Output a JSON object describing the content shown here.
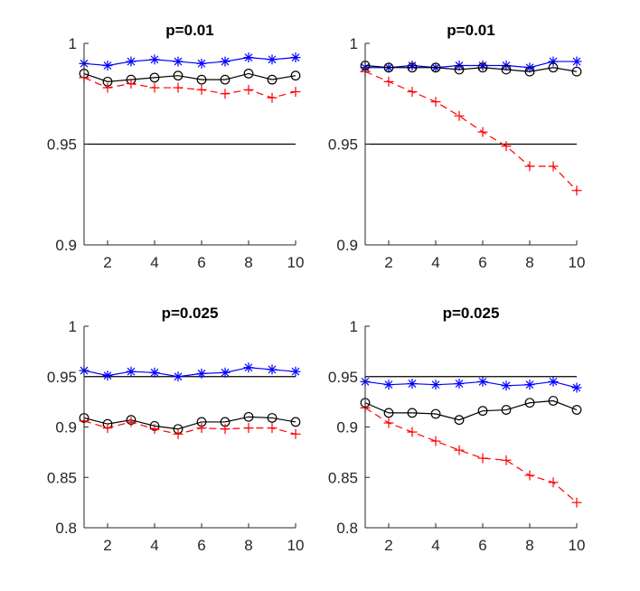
{
  "chart_data": [
    {
      "type": "line",
      "title": "p=0.01",
      "x": [
        1,
        2,
        3,
        4,
        5,
        6,
        7,
        8,
        9,
        10
      ],
      "xticks": [
        2,
        4,
        6,
        8,
        10
      ],
      "xlim": [
        1,
        10
      ],
      "ylim": [
        0.9,
        1
      ],
      "yticks": [
        0.9,
        0.95,
        1
      ],
      "ytick_labels": [
        "0.9",
        "0.95",
        "1"
      ],
      "reference_line": 0.95,
      "series": [
        {
          "name": "blue-asterisk",
          "color": "#0000ff",
          "marker": "asterisk",
          "dash": "solid",
          "values": [
            0.99,
            0.989,
            0.991,
            0.992,
            0.991,
            0.99,
            0.991,
            0.993,
            0.992,
            0.993
          ]
        },
        {
          "name": "black-circle",
          "color": "#000000",
          "marker": "circle",
          "dash": "solid",
          "values": [
            0.985,
            0.981,
            0.982,
            0.983,
            0.984,
            0.982,
            0.982,
            0.985,
            0.982,
            0.984
          ]
        },
        {
          "name": "red-plus",
          "color": "#ff0000",
          "marker": "plus",
          "dash": "dashed",
          "values": [
            0.983,
            0.978,
            0.98,
            0.978,
            0.978,
            0.977,
            0.975,
            0.977,
            0.973,
            0.976
          ]
        }
      ]
    },
    {
      "type": "line",
      "title": "p=0.01",
      "x": [
        1,
        2,
        3,
        4,
        5,
        6,
        7,
        8,
        9,
        10
      ],
      "xticks": [
        2,
        4,
        6,
        8,
        10
      ],
      "xlim": [
        1,
        10
      ],
      "ylim": [
        0.9,
        1
      ],
      "yticks": [
        0.9,
        0.95,
        1
      ],
      "ytick_labels": [
        "0.9",
        "0.95",
        "1"
      ],
      "reference_line": 0.95,
      "series": [
        {
          "name": "blue-asterisk",
          "color": "#0000ff",
          "marker": "asterisk",
          "dash": "solid",
          "values": [
            0.988,
            0.988,
            0.989,
            0.988,
            0.989,
            0.989,
            0.989,
            0.988,
            0.991,
            0.991
          ]
        },
        {
          "name": "black-circle",
          "color": "#000000",
          "marker": "circle",
          "dash": "solid",
          "values": [
            0.989,
            0.988,
            0.988,
            0.988,
            0.987,
            0.988,
            0.987,
            0.986,
            0.988,
            0.986
          ]
        },
        {
          "name": "red-plus",
          "color": "#ff0000",
          "marker": "plus",
          "dash": "dashed",
          "values": [
            0.986,
            0.981,
            0.976,
            0.971,
            0.964,
            0.956,
            0.949,
            0.939,
            0.939,
            0.927
          ]
        }
      ]
    },
    {
      "type": "line",
      "title": "p=0.025",
      "x": [
        1,
        2,
        3,
        4,
        5,
        6,
        7,
        8,
        9,
        10
      ],
      "xticks": [
        2,
        4,
        6,
        8,
        10
      ],
      "xlim": [
        1,
        10
      ],
      "ylim": [
        0.8,
        1
      ],
      "yticks": [
        0.8,
        0.85,
        0.9,
        0.95,
        1
      ],
      "ytick_labels": [
        "0.8",
        "0.85",
        "0.9",
        "0.95",
        "1"
      ],
      "reference_line": 0.95,
      "series": [
        {
          "name": "blue-asterisk",
          "color": "#0000ff",
          "marker": "asterisk",
          "dash": "solid",
          "values": [
            0.956,
            0.951,
            0.955,
            0.954,
            0.95,
            0.953,
            0.954,
            0.959,
            0.957,
            0.955
          ]
        },
        {
          "name": "black-circle",
          "color": "#000000",
          "marker": "circle",
          "dash": "solid",
          "values": [
            0.909,
            0.903,
            0.907,
            0.901,
            0.898,
            0.905,
            0.905,
            0.91,
            0.909,
            0.905
          ]
        },
        {
          "name": "red-plus",
          "color": "#ff0000",
          "marker": "plus",
          "dash": "dashed",
          "values": [
            0.906,
            0.899,
            0.905,
            0.898,
            0.893,
            0.899,
            0.898,
            0.899,
            0.899,
            0.893
          ]
        }
      ]
    },
    {
      "type": "line",
      "title": "p=0.025",
      "x": [
        1,
        2,
        3,
        4,
        5,
        6,
        7,
        8,
        9,
        10
      ],
      "xticks": [
        2,
        4,
        6,
        8,
        10
      ],
      "xlim": [
        1,
        10
      ],
      "ylim": [
        0.8,
        1
      ],
      "yticks": [
        0.8,
        0.85,
        0.9,
        0.95,
        1
      ],
      "ytick_labels": [
        "0.8",
        "0.85",
        "0.9",
        "0.95",
        "1"
      ],
      "reference_line": 0.95,
      "series": [
        {
          "name": "blue-asterisk",
          "color": "#0000ff",
          "marker": "asterisk",
          "dash": "solid",
          "values": [
            0.945,
            0.942,
            0.943,
            0.942,
            0.943,
            0.945,
            0.941,
            0.942,
            0.945,
            0.939
          ]
        },
        {
          "name": "black-circle",
          "color": "#000000",
          "marker": "circle",
          "dash": "solid",
          "values": [
            0.924,
            0.914,
            0.914,
            0.913,
            0.907,
            0.916,
            0.917,
            0.924,
            0.926,
            0.917
          ]
        },
        {
          "name": "red-plus",
          "color": "#ff0000",
          "marker": "plus",
          "dash": "dashed",
          "values": [
            0.919,
            0.904,
            0.895,
            0.886,
            0.877,
            0.869,
            0.867,
            0.852,
            0.845,
            0.825
          ]
        }
      ]
    }
  ]
}
